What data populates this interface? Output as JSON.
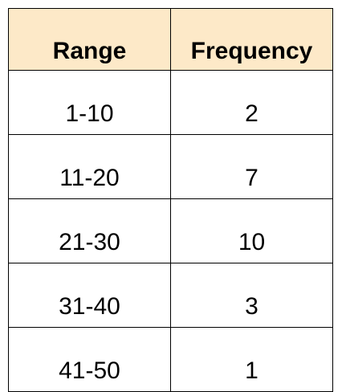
{
  "table": {
    "headers": [
      "Range",
      "Frequency"
    ],
    "rows": [
      {
        "range": "1-10",
        "frequency": "2"
      },
      {
        "range": "11-20",
        "frequency": "7"
      },
      {
        "range": "21-30",
        "frequency": "10"
      },
      {
        "range": "31-40",
        "frequency": "3"
      },
      {
        "range": "41-50",
        "frequency": "1"
      }
    ],
    "header_fill_color": "#fde9c8",
    "border_color": "#000000"
  }
}
